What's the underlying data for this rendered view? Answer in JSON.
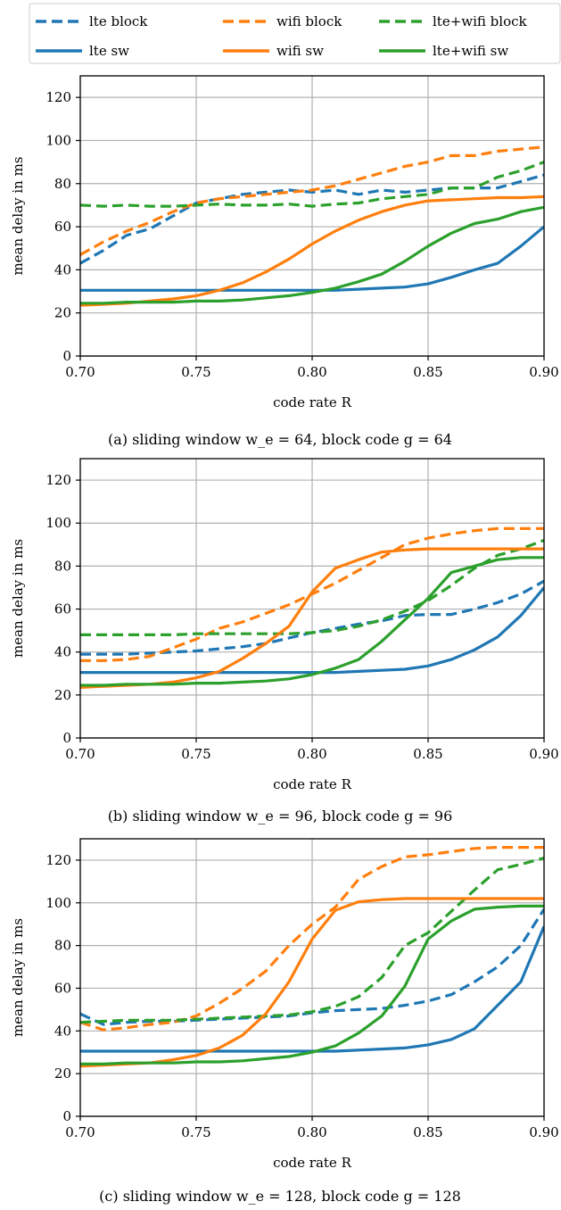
{
  "legend": {
    "items": [
      {
        "label": "lte block",
        "color": "#1f77b4",
        "dashed": true
      },
      {
        "label": "wifi block",
        "color": "#ff7f0e",
        "dashed": true
      },
      {
        "label": "lte+wifi block",
        "color": "#2ca02c",
        "dashed": true
      },
      {
        "label": "lte sw",
        "color": "#1f77b4",
        "dashed": false
      },
      {
        "label": "wifi sw",
        "color": "#ff7f0e",
        "dashed": false
      },
      {
        "label": "lte+wifi sw",
        "color": "#2ca02c",
        "dashed": false
      }
    ]
  },
  "chart_data": [
    {
      "type": "line",
      "caption": "(a) sliding window w_e = 64, block code g = 64",
      "xlabel": "code rate R",
      "ylabel": "mean delay in ms",
      "xlim": [
        0.7,
        0.9
      ],
      "ylim": [
        0,
        130
      ],
      "xticks": [
        "0.70",
        "0.75",
        "0.80",
        "0.85",
        "0.90"
      ],
      "yticks": [
        "0",
        "20",
        "40",
        "60",
        "80",
        "100",
        "120"
      ],
      "grid": true,
      "x": [
        0.7,
        0.71,
        0.72,
        0.73,
        0.74,
        0.75,
        0.76,
        0.77,
        0.78,
        0.79,
        0.8,
        0.81,
        0.82,
        0.83,
        0.84,
        0.85,
        0.86,
        0.87,
        0.88,
        0.89,
        0.9
      ],
      "series": [
        {
          "name": "lte block",
          "color": "#1f77b4",
          "dashed": true,
          "values": [
            43,
            49,
            56,
            59,
            65,
            71,
            73,
            75,
            76,
            77,
            76,
            77,
            75,
            77,
            76,
            77,
            78,
            78,
            78,
            81,
            84
          ]
        },
        {
          "name": "wifi block",
          "color": "#ff7f0e",
          "dashed": true,
          "values": [
            47,
            53,
            58,
            62,
            67,
            71,
            73,
            74,
            75,
            76,
            77,
            79,
            82,
            85,
            88,
            90,
            93,
            93,
            95,
            96,
            97
          ]
        },
        {
          "name": "lte+wifi block",
          "color": "#2ca02c",
          "dashed": true,
          "values": [
            70,
            69.5,
            70,
            69.5,
            69.5,
            70,
            70.5,
            70,
            70,
            70.5,
            69.5,
            70.5,
            71,
            73,
            74,
            75,
            78,
            78,
            83,
            86,
            90
          ]
        },
        {
          "name": "lte sw",
          "color": "#1f77b4",
          "dashed": false,
          "values": [
            30.5,
            30.5,
            30.5,
            30.5,
            30.5,
            30.5,
            30.5,
            30.5,
            30.5,
            30.5,
            30.5,
            30.5,
            31,
            31.5,
            32,
            33.5,
            36.5,
            40,
            43,
            51,
            60
          ]
        },
        {
          "name": "wifi sw",
          "color": "#ff7f0e",
          "dashed": false,
          "values": [
            23.5,
            24,
            24.5,
            25.5,
            26.5,
            28,
            30.5,
            34,
            39,
            45,
            52,
            58,
            63,
            67,
            70,
            72,
            72.5,
            73,
            73.5,
            73.5,
            74
          ]
        },
        {
          "name": "lte+wifi sw",
          "color": "#2ca02c",
          "dashed": false,
          "values": [
            24.5,
            24.5,
            25,
            25,
            25,
            25.5,
            25.5,
            26,
            27,
            28,
            29.5,
            31.5,
            34.5,
            38,
            44,
            51,
            57,
            61.5,
            63.5,
            67,
            69
          ]
        }
      ]
    },
    {
      "type": "line",
      "caption": "(b) sliding window w_e = 96, block code g = 96",
      "xlabel": "code rate R",
      "ylabel": "mean delay in ms",
      "xlim": [
        0.7,
        0.9
      ],
      "ylim": [
        0,
        130
      ],
      "xticks": [
        "0.70",
        "0.75",
        "0.80",
        "0.85",
        "0.90"
      ],
      "yticks": [
        "0",
        "20",
        "40",
        "60",
        "80",
        "100",
        "120"
      ],
      "grid": true,
      "x": [
        0.7,
        0.71,
        0.72,
        0.73,
        0.74,
        0.75,
        0.76,
        0.77,
        0.78,
        0.79,
        0.8,
        0.81,
        0.82,
        0.83,
        0.84,
        0.85,
        0.86,
        0.87,
        0.88,
        0.89,
        0.9
      ],
      "series": [
        {
          "name": "lte block",
          "color": "#1f77b4",
          "dashed": true,
          "values": [
            39,
            39,
            39,
            39.5,
            40,
            40.5,
            41.5,
            42.5,
            44,
            46.5,
            49,
            51,
            53,
            54.5,
            57,
            57.5,
            57.5,
            60,
            63,
            67,
            73
          ]
        },
        {
          "name": "wifi block",
          "color": "#ff7f0e",
          "dashed": true,
          "values": [
            36,
            36,
            36.5,
            38,
            42,
            46,
            51,
            54,
            58,
            62,
            67,
            72,
            78,
            84,
            90,
            93,
            95,
            96.5,
            97.5,
            97.5,
            97.5
          ]
        },
        {
          "name": "lte+wifi block",
          "color": "#2ca02c",
          "dashed": true,
          "values": [
            48,
            48,
            48,
            48,
            48,
            48.5,
            48.5,
            48.5,
            48.5,
            48.5,
            49,
            50,
            52,
            55,
            59,
            64,
            71,
            79,
            85,
            88,
            92
          ]
        },
        {
          "name": "lte sw",
          "color": "#1f77b4",
          "dashed": false,
          "values": [
            30.5,
            30.5,
            30.5,
            30.5,
            30.5,
            30.5,
            30.5,
            30.5,
            30.5,
            30.5,
            30.5,
            30.5,
            31,
            31.5,
            32,
            33.5,
            36.5,
            41,
            47,
            57,
            70
          ]
        },
        {
          "name": "wifi sw",
          "color": "#ff7f0e",
          "dashed": false,
          "values": [
            23.5,
            24,
            24.5,
            25,
            26,
            28,
            31,
            37,
            44,
            52,
            68,
            79,
            83,
            86.5,
            87.5,
            88,
            88,
            88,
            88,
            88,
            88
          ]
        },
        {
          "name": "lte+wifi sw",
          "color": "#2ca02c",
          "dashed": false,
          "values": [
            24.5,
            24.5,
            25,
            25,
            25,
            25.5,
            25.5,
            26,
            26.5,
            27.5,
            29.5,
            32.5,
            36.5,
            45,
            55,
            65,
            77,
            80,
            83,
            84,
            84
          ]
        }
      ]
    },
    {
      "type": "line",
      "caption": "(c) sliding window w_e = 128, block code g = 128",
      "xlabel": "code rate R",
      "ylabel": "mean delay in ms",
      "xlim": [
        0.7,
        0.9
      ],
      "ylim": [
        0,
        130
      ],
      "xticks": [
        "0.70",
        "0.75",
        "0.80",
        "0.85",
        "0.90"
      ],
      "yticks": [
        "0",
        "20",
        "40",
        "60",
        "80",
        "100",
        "120"
      ],
      "grid": true,
      "x": [
        0.7,
        0.71,
        0.72,
        0.73,
        0.74,
        0.75,
        0.76,
        0.77,
        0.78,
        0.79,
        0.8,
        0.81,
        0.82,
        0.83,
        0.84,
        0.85,
        0.86,
        0.87,
        0.88,
        0.89,
        0.9
      ],
      "series": [
        {
          "name": "lte block",
          "color": "#1f77b4",
          "dashed": true,
          "values": [
            48,
            43,
            44,
            44.5,
            44.5,
            45,
            45.5,
            46,
            46.5,
            47,
            48.5,
            49.5,
            50,
            50.5,
            52,
            54,
            57,
            63,
            70,
            80,
            97
          ]
        },
        {
          "name": "wifi block",
          "color": "#ff7f0e",
          "dashed": true,
          "values": [
            44,
            40.5,
            41.5,
            43,
            44,
            47,
            53,
            60,
            68,
            80,
            90,
            98,
            111,
            117,
            121.5,
            122.5,
            124,
            125.5,
            126,
            126,
            126
          ]
        },
        {
          "name": "lte+wifi block",
          "color": "#2ca02c",
          "dashed": true,
          "values": [
            44,
            44.5,
            45,
            45,
            45,
            45.5,
            46,
            46.5,
            47,
            47.5,
            49,
            51.5,
            56,
            65,
            80,
            86,
            96,
            106,
            115.5,
            118,
            121
          ]
        },
        {
          "name": "lte sw",
          "color": "#1f77b4",
          "dashed": false,
          "values": [
            30.5,
            30.5,
            30.5,
            30.5,
            30.5,
            30.5,
            30.5,
            30.5,
            30.5,
            30.5,
            30.5,
            30.5,
            31,
            31.5,
            32,
            33.5,
            36,
            41,
            52,
            63,
            89
          ]
        },
        {
          "name": "wifi sw",
          "color": "#ff7f0e",
          "dashed": false,
          "values": [
            23.5,
            24,
            24.5,
            25,
            26.5,
            28.5,
            32,
            38,
            48,
            63,
            83,
            96.5,
            100.5,
            101.5,
            102,
            102,
            102,
            102,
            102,
            102,
            102
          ]
        },
        {
          "name": "lte+wifi sw",
          "color": "#2ca02c",
          "dashed": false,
          "values": [
            24.5,
            24.5,
            25,
            25,
            25,
            25.5,
            25.5,
            26,
            27,
            28,
            30,
            33,
            39,
            47,
            61,
            83,
            91.5,
            97,
            98,
            98.5,
            98.5
          ]
        }
      ]
    }
  ]
}
